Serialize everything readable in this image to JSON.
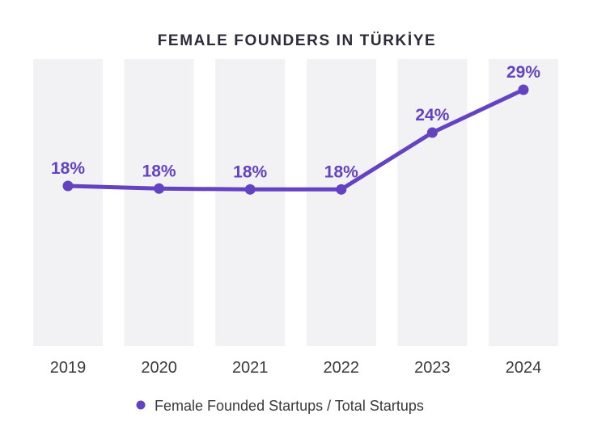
{
  "chart_data": {
    "type": "line",
    "title": "FEMALE FOUNDERS IN TÜRKİYE",
    "categories": [
      "2019",
      "2020",
      "2021",
      "2022",
      "2023",
      "2024"
    ],
    "series": [
      {
        "name": "Female Founded Startups / Total Startups",
        "values": [
          18.3,
          18.0,
          17.9,
          17.9,
          24.4,
          29.3
        ],
        "labels": [
          "18%",
          "18%",
          "18%",
          "18%",
          "24%",
          "29%"
        ]
      }
    ],
    "xlabel": "",
    "ylabel": "",
    "ylim": [
      0,
      29.3
    ],
    "grid": false,
    "legend": "bottom-center"
  },
  "colors": {
    "line": "#6443c3",
    "label": "#6443c3",
    "band": "#f2f2f4",
    "title": "#2b2b3a",
    "tick": "#3a3a3a",
    "legend_text": "#3a3a3a"
  }
}
